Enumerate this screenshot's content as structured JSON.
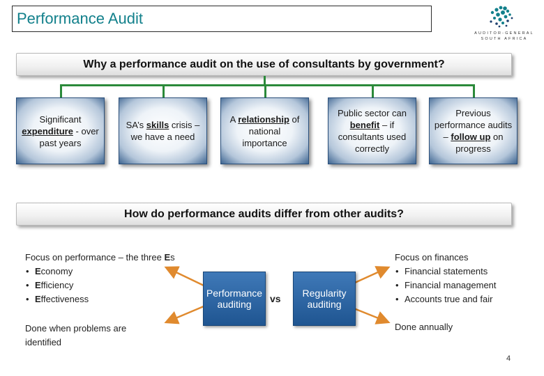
{
  "header": {
    "title": "Performance Audit",
    "logo_line1": "AUDITOR-GENERAL",
    "logo_line2": "SOUTH AFRICA",
    "accent_color": "#12808b"
  },
  "section1": {
    "heading": "Why a performance audit on the use of consultants by government?",
    "cards": [
      {
        "pre": "Significant ",
        "bold": "expenditure",
        "post": " - over past years"
      },
      {
        "pre": "SA’s ",
        "bold": "skills",
        "post": " crisis – we have a need"
      },
      {
        "pre": "A ",
        "bold": "relationship",
        "post": " of national importance"
      },
      {
        "pre": "Public sector can ",
        "bold": "benefit",
        "post": " – if consultants used correctly"
      },
      {
        "pre": "Previous performance audits – ",
        "bold": "follow up",
        "post": " on progress"
      }
    ]
  },
  "section2": {
    "heading": "How do performance audits differ from other audits?",
    "left": {
      "intro_pre": "Focus on performance – the three ",
      "intro_bold": "E",
      "intro_post": "s",
      "items": [
        {
          "bold": "E",
          "rest": "conomy"
        },
        {
          "bold": "E",
          "rest": "fficiency"
        },
        {
          "bold": "E",
          "rest": "ffectiveness"
        }
      ],
      "footer": "Done when problems are identified"
    },
    "performance_box": "Performance auditing",
    "vs": "vs",
    "regularity_box": "Regularity auditing",
    "right": {
      "intro": "Focus on finances",
      "items": [
        "Financial statements",
        "Financial management",
        "Accounts true and fair"
      ],
      "footer": "Done annually"
    },
    "arrow_color": "#e08a2e"
  },
  "page_number": "4"
}
